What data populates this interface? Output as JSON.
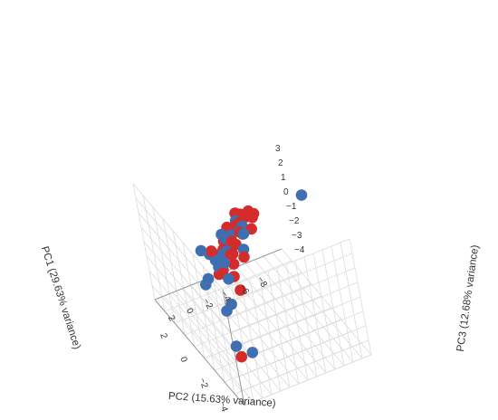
{
  "chart_data": {
    "type": "scatter",
    "projection": "3d",
    "grid": true,
    "colors": {
      "blue": "#3f6fb0",
      "red": "#d42b2b"
    },
    "axes": {
      "pc1": {
        "label": "PC1 (29.63% variance)",
        "ticks": [
          {
            "v": -6,
            "label": "−6"
          },
          {
            "v": -4,
            "label": "−4"
          },
          {
            "v": -2,
            "label": "−2"
          },
          {
            "v": 0,
            "label": "0"
          },
          {
            "v": 2,
            "label": "2"
          }
        ]
      },
      "pc2": {
        "label": "PC2 (15.63% variance)",
        "ticks": [
          {
            "v": 2,
            "label": "2"
          },
          {
            "v": 0,
            "label": "0"
          },
          {
            "v": -2,
            "label": "−2"
          },
          {
            "v": -4,
            "label": "−4"
          },
          {
            "v": -6,
            "label": "−6"
          },
          {
            "v": -8,
            "label": "−8"
          }
        ]
      },
      "pc3": {
        "label": "PC3 (12.68% variance)",
        "ticks": [
          {
            "v": 3,
            "label": "3"
          },
          {
            "v": 2,
            "label": "2"
          },
          {
            "v": 1,
            "label": "1"
          },
          {
            "v": 0,
            "label": "0"
          },
          {
            "v": -1,
            "label": "−1"
          },
          {
            "v": -2,
            "label": "−2"
          },
          {
            "v": -3,
            "label": "−3"
          },
          {
            "v": -4,
            "label": "−4"
          }
        ]
      }
    },
    "points": [
      {
        "pc1": -1.5,
        "pc2": -9.5,
        "pc3": 3.5,
        "group": "blue"
      },
      {
        "pc1": -4.5,
        "pc2": 1.0,
        "pc3": 2.0,
        "group": "red"
      },
      {
        "pc1": -5.8,
        "pc2": 3.2,
        "pc3": -1.0,
        "group": "red"
      },
      {
        "pc1": -4.5,
        "pc2": 2.5,
        "pc3": -1.5,
        "group": "blue"
      },
      {
        "pc1": -5.8,
        "pc2": 2.0,
        "pc3": -1.0,
        "group": "blue"
      },
      {
        "pc1": -2.0,
        "pc2": 0.5,
        "pc3": 1.0,
        "group": "red"
      },
      {
        "pc1": -1.5,
        "pc2": 0.0,
        "pc3": 1.0,
        "group": "blue"
      },
      {
        "pc1": -2.0,
        "pc2": -2.0,
        "pc3": 1.5,
        "group": "red"
      },
      {
        "pc1": -1.5,
        "pc2": -2.5,
        "pc3": 1.5,
        "group": "blue"
      },
      {
        "pc1": -3.5,
        "pc2": 2.0,
        "pc3": 0.0,
        "group": "blue"
      },
      {
        "pc1": -3.0,
        "pc2": 1.0,
        "pc3": -0.2,
        "group": "blue"
      },
      {
        "pc1": -1.0,
        "pc2": 0.0,
        "pc3": 0.5,
        "group": "blue"
      },
      {
        "pc1": -1.0,
        "pc2": -1.5,
        "pc3": 1.0,
        "group": "red"
      },
      {
        "pc1": -0.5,
        "pc2": -1.5,
        "pc3": 0.8,
        "group": "blue"
      },
      {
        "pc1": -1.5,
        "pc2": -1.0,
        "pc3": 0.0,
        "group": "red"
      },
      {
        "pc1": -0.5,
        "pc2": -0.5,
        "pc3": 0.2,
        "group": "blue"
      },
      {
        "pc1": 0.0,
        "pc2": -1.5,
        "pc3": 0.2,
        "group": "blue"
      },
      {
        "pc1": 0.5,
        "pc2": -2.0,
        "pc3": 0.0,
        "group": "red"
      },
      {
        "pc1": 0.5,
        "pc2": -2.5,
        "pc3": 0.5,
        "group": "blue"
      },
      {
        "pc1": -0.5,
        "pc2": -3.5,
        "pc3": 1.5,
        "group": "red"
      },
      {
        "pc1": 0.0,
        "pc2": -4.0,
        "pc3": 1.5,
        "group": "blue"
      },
      {
        "pc1": -0.5,
        "pc2": -4.5,
        "pc3": 1.6,
        "group": "red"
      },
      {
        "pc1": 0.5,
        "pc2": -5.0,
        "pc3": 1.6,
        "group": "red"
      },
      {
        "pc1": 0.5,
        "pc2": -4.0,
        "pc3": 0.8,
        "group": "blue"
      },
      {
        "pc1": 1.0,
        "pc2": -3.5,
        "pc3": 0.2,
        "group": "blue"
      },
      {
        "pc1": 1.5,
        "pc2": -3.0,
        "pc3": -0.5,
        "group": "red"
      },
      {
        "pc1": 1.5,
        "pc2": -4.5,
        "pc3": 0.2,
        "group": "red"
      },
      {
        "pc1": 2.0,
        "pc2": -4.0,
        "pc3": -0.2,
        "group": "red"
      },
      {
        "pc1": 2.0,
        "pc2": -5.0,
        "pc3": 0.0,
        "group": "blue"
      },
      {
        "pc1": 2.5,
        "pc2": -5.5,
        "pc3": 0.0,
        "group": "red"
      },
      {
        "pc1": 1.0,
        "pc2": -6.0,
        "pc3": 0.8,
        "group": "red"
      },
      {
        "pc1": 1.5,
        "pc2": -6.0,
        "pc3": 0.5,
        "group": "red"
      },
      {
        "pc1": 2.0,
        "pc2": -6.5,
        "pc3": 0.3,
        "group": "red"
      },
      {
        "pc1": 2.5,
        "pc2": -6.0,
        "pc3": -0.2,
        "group": "red"
      },
      {
        "pc1": 2.0,
        "pc2": -7.0,
        "pc3": 0.0,
        "group": "red"
      },
      {
        "pc1": 1.0,
        "pc2": -1.5,
        "pc3": -2.0,
        "group": "red"
      },
      {
        "pc1": 3.0,
        "pc2": -2.5,
        "pc3": -2.5,
        "group": "blue"
      },
      {
        "pc1": 0.0,
        "pc2": 0.5,
        "pc3": -1.0,
        "group": "blue"
      },
      {
        "pc1": -0.8,
        "pc2": 1.5,
        "pc3": -0.5,
        "group": "blue"
      },
      {
        "pc1": -0.5,
        "pc2": -0.8,
        "pc3": -0.3,
        "group": "red"
      },
      {
        "pc1": 0.5,
        "pc2": -1.0,
        "pc3": -0.5,
        "group": "blue"
      },
      {
        "pc1": 1.0,
        "pc2": -2.0,
        "pc3": -0.8,
        "group": "red"
      },
      {
        "pc1": 1.5,
        "pc2": -2.0,
        "pc3": -1.2,
        "group": "blue"
      },
      {
        "pc1": 1.0,
        "pc2": -3.0,
        "pc3": -0.6,
        "group": "red"
      },
      {
        "pc1": -0.5,
        "pc2": -2.0,
        "pc3": -0.2,
        "group": "red"
      },
      {
        "pc1": -1.0,
        "pc2": 1.5,
        "pc3": 2.0,
        "group": "blue"
      },
      {
        "pc1": -2.5,
        "pc2": -0.5,
        "pc3": 2.5,
        "group": "red"
      },
      {
        "pc1": -3.0,
        "pc2": 0.8,
        "pc3": 1.5,
        "group": "blue"
      },
      {
        "pc1": -1.5,
        "pc2": -2.8,
        "pc3": 2.5,
        "group": "blue"
      },
      {
        "pc1": -0.8,
        "pc2": -3.0,
        "pc3": 2.0,
        "group": "red"
      },
      {
        "pc1": 1.0,
        "pc2": -2.5,
        "pc3": 0.5,
        "group": "blue"
      },
      {
        "pc1": 0.0,
        "pc2": -3.0,
        "pc3": 0.5,
        "group": "red"
      },
      {
        "pc1": 0.5,
        "pc2": -2.8,
        "pc3": -0.2,
        "group": "blue"
      },
      {
        "pc1": -0.2,
        "pc2": -2.5,
        "pc3": 1.0,
        "group": "red"
      },
      {
        "pc1": 0.2,
        "pc2": -0.5,
        "pc3": 0.5,
        "group": "red"
      },
      {
        "pc1": -1.2,
        "pc2": -0.5,
        "pc3": 0.8,
        "group": "blue"
      },
      {
        "pc1": 1.2,
        "pc2": -5.5,
        "pc3": 0.8,
        "group": "red"
      },
      {
        "pc1": 1.8,
        "pc2": -5.2,
        "pc3": -0.3,
        "group": "red"
      },
      {
        "pc1": 2.2,
        "pc2": -6.2,
        "pc3": -0.2,
        "group": "red"
      },
      {
        "pc1": 0.8,
        "pc2": -4.5,
        "pc3": 1.0,
        "group": "red"
      }
    ]
  }
}
